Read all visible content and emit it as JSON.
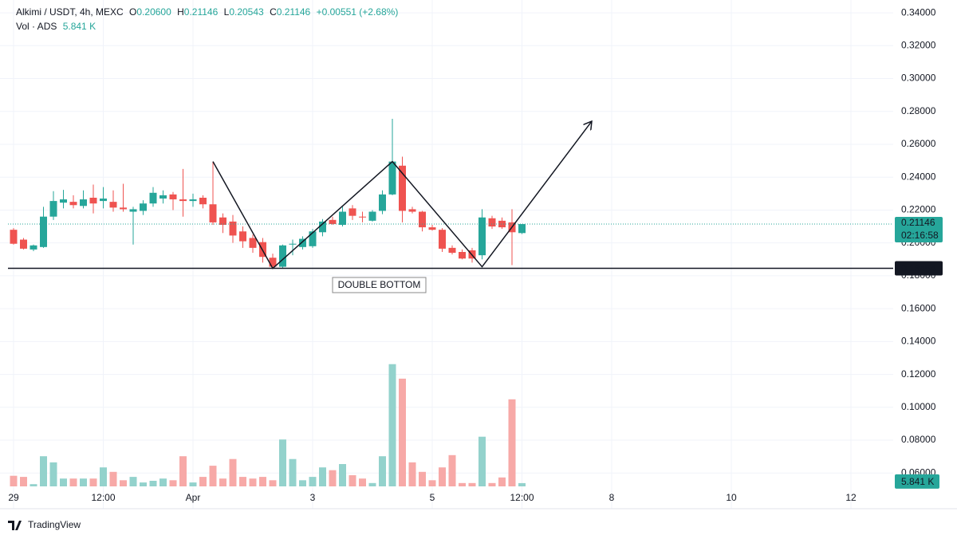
{
  "chart_data": {
    "type": "candlestick",
    "header": {
      "symbol": "Alkimi / USDT, 4h, MEXC",
      "open_key": "O",
      "open": "0.20600",
      "high_key": "H",
      "high": "0.21146",
      "low_key": "L",
      "low": "0.20543",
      "close_key": "C",
      "close": "0.21146",
      "change": "+0.00551 (+2.68%)",
      "volume_title": "Vol · ADS",
      "volume": "5.841 K"
    },
    "x": [
      0,
      1,
      2,
      3,
      4,
      5,
      6,
      7,
      8,
      9,
      10,
      11,
      12,
      13,
      14,
      15,
      16,
      17,
      18,
      19,
      20,
      21,
      22,
      23,
      24,
      25,
      26,
      27,
      28,
      29,
      30,
      31,
      32,
      33,
      34,
      35,
      36,
      37,
      38,
      39,
      40,
      41,
      42,
      43,
      44,
      45,
      46,
      47,
      48,
      49,
      50,
      51
    ],
    "open": [
      0.208,
      0.202,
      0.196,
      0.1975,
      0.216,
      0.2245,
      0.225,
      0.2225,
      0.2275,
      0.2255,
      0.225,
      0.2215,
      0.219,
      0.2195,
      0.224,
      0.227,
      0.2295,
      0.2265,
      0.2255,
      0.2275,
      0.2235,
      0.2155,
      0.213,
      0.207,
      0.203,
      0.2005,
      0.191,
      0.1855,
      0.199,
      0.1975,
      0.198,
      0.2065,
      0.214,
      0.211,
      0.221,
      0.216,
      0.2135,
      0.2195,
      0.2295,
      0.247,
      0.2205,
      0.219,
      0.2095,
      0.208,
      0.197,
      0.1945,
      0.1955,
      0.1925,
      0.215,
      0.2135,
      0.2125,
      0.206
    ],
    "high": [
      0.209,
      0.203,
      0.199,
      0.222,
      0.2315,
      0.2323,
      0.229,
      0.232,
      0.2355,
      0.234,
      0.232,
      0.236,
      0.222,
      0.226,
      0.234,
      0.232,
      0.231,
      0.245,
      0.23,
      0.229,
      0.2495,
      0.218,
      0.217,
      0.21,
      0.205,
      0.203,
      0.1935,
      0.199,
      0.202,
      0.204,
      0.2085,
      0.2145,
      0.216,
      0.222,
      0.223,
      0.219,
      0.22,
      0.232,
      0.2755,
      0.2525,
      0.222,
      0.2195,
      0.211,
      0.209,
      0.1985,
      0.196,
      0.197,
      0.2205,
      0.2165,
      0.2155,
      0.2205,
      0.21146
    ],
    "low": [
      0.199,
      0.196,
      0.195,
      0.197,
      0.214,
      0.221,
      0.221,
      0.221,
      0.218,
      0.221,
      0.219,
      0.219,
      0.199,
      0.217,
      0.222,
      0.224,
      0.22,
      0.216,
      0.222,
      0.221,
      0.211,
      0.206,
      0.2,
      0.197,
      0.194,
      0.188,
      0.1845,
      0.1845,
      0.1925,
      0.196,
      0.197,
      0.204,
      0.211,
      0.21,
      0.214,
      0.2125,
      0.213,
      0.2175,
      0.229,
      0.2125,
      0.218,
      0.207,
      0.2075,
      0.1945,
      0.193,
      0.19,
      0.188,
      0.19,
      0.2085,
      0.2085,
      0.1865,
      0.20543
    ],
    "close": [
      0.1995,
      0.1965,
      0.1985,
      0.216,
      0.2255,
      0.2265,
      0.223,
      0.2265,
      0.224,
      0.227,
      0.2215,
      0.2205,
      0.2205,
      0.224,
      0.2305,
      0.229,
      0.2265,
      0.2255,
      0.2265,
      0.2235,
      0.2125,
      0.211,
      0.2045,
      0.201,
      0.197,
      0.1915,
      0.1855,
      0.1985,
      0.1995,
      0.2025,
      0.207,
      0.213,
      0.2115,
      0.219,
      0.2165,
      0.2155,
      0.219,
      0.2295,
      0.2495,
      0.2195,
      0.219,
      0.2095,
      0.208,
      0.1965,
      0.194,
      0.1905,
      0.1905,
      0.2155,
      0.21,
      0.2095,
      0.2065,
      0.21146
    ],
    "volume": [
      19,
      17,
      4,
      54,
      43,
      14,
      14,
      14,
      14,
      34,
      26,
      11,
      17,
      7,
      10,
      14,
      11,
      54,
      7,
      17,
      37,
      14,
      49,
      17,
      14,
      17,
      11,
      84,
      49,
      11,
      17,
      34,
      29,
      40,
      20,
      14,
      6,
      54,
      219,
      193,
      43,
      26,
      11,
      34,
      56,
      6,
      6,
      89,
      6,
      16,
      156,
      5.841
    ],
    "up_color": "#26a69a",
    "down_color": "#ef5350",
    "up_volume_color": "#93d2cc",
    "down_volume_color": "#f7a9a7",
    "xlim": [
      -0.56,
      88.24
    ],
    "xticks": [
      {
        "value": 0,
        "label": "29"
      },
      {
        "value": 9,
        "label": "12:00"
      },
      {
        "value": 18,
        "label": "Apr"
      },
      {
        "value": 30,
        "label": "3"
      },
      {
        "value": 42,
        "label": "5"
      },
      {
        "value": 51,
        "label": "12:00"
      },
      {
        "value": 60,
        "label": "8"
      },
      {
        "value": 72,
        "label": "10"
      },
      {
        "value": 84,
        "label": "12"
      }
    ],
    "ylim": [
      0.0383,
      0.3478
    ],
    "yticks": [
      {
        "value": 0.06,
        "label": "0.06000"
      },
      {
        "value": 0.08,
        "label": "0.08000"
      },
      {
        "value": 0.1,
        "label": "0.10000"
      },
      {
        "value": 0.12,
        "label": "0.12000"
      },
      {
        "value": 0.14,
        "label": "0.14000"
      },
      {
        "value": 0.16,
        "label": "0.16000"
      },
      {
        "value": 0.18,
        "label": "0.18000"
      },
      {
        "value": 0.2,
        "label": "0.20000"
      },
      {
        "value": 0.22,
        "label": "0.22000"
      },
      {
        "value": 0.24,
        "label": "0.24000"
      },
      {
        "value": 0.26,
        "label": "0.26000"
      },
      {
        "value": 0.28,
        "label": "0.28000"
      },
      {
        "value": 0.3,
        "label": "0.30000"
      },
      {
        "value": 0.32,
        "label": "0.32000"
      },
      {
        "value": 0.34,
        "label": "0.34000"
      }
    ],
    "y2lim": [
      0,
      300
    ],
    "grid": true,
    "last_price": {
      "value": 0.21146,
      "label": "0.21146"
    },
    "countdown": "02:16:58",
    "support": {
      "value": 0.18454,
      "label": "0.18454"
    },
    "pattern": {
      "x": [
        20,
        26,
        38,
        47,
        58
      ],
      "y": [
        0.2495,
        0.1845,
        0.2495,
        0.1855,
        0.274
      ]
    },
    "annotation": "DOUBLE BOTTOM",
    "brand": "TradingView"
  }
}
